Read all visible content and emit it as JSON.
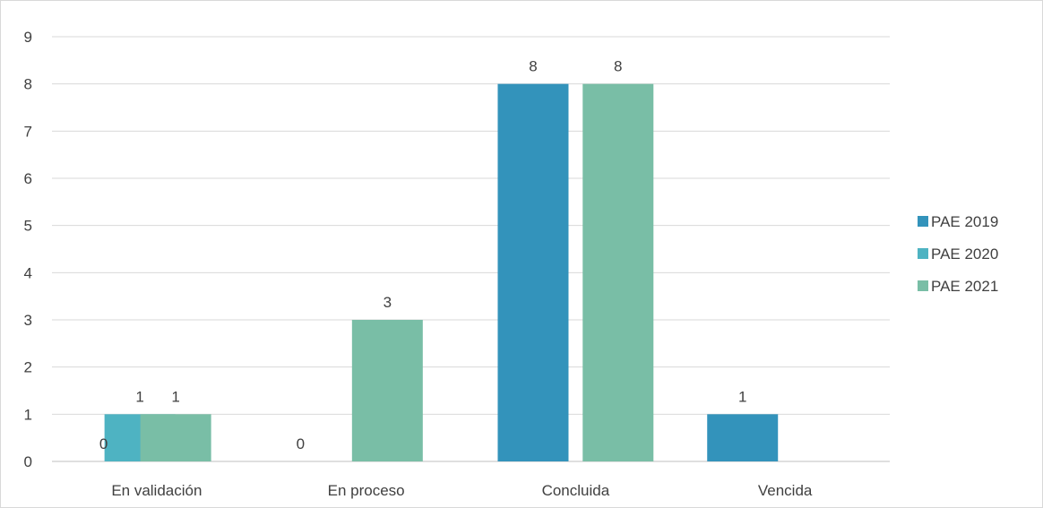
{
  "chart_data": {
    "type": "bar",
    "categories": [
      "En validación",
      "En proceso",
      "Concluida",
      "Vencida"
    ],
    "series": [
      {
        "name": "PAE 2019",
        "color": "#3393bb",
        "values": [
          null,
          null,
          8,
          1
        ],
        "labels": [
          "",
          "",
          "8",
          "1"
        ]
      },
      {
        "name": "PAE 2020",
        "color": "#4eb3c2",
        "values": [
          0,
          0,
          null,
          null
        ],
        "labels": [
          "0",
          "0",
          "",
          ""
        ]
      },
      {
        "name": "PAE 2021",
        "color": "#79bea6",
        "values": [
          1,
          3,
          8,
          null
        ],
        "labels": [
          "1",
          "3",
          "8",
          ""
        ]
      }
    ],
    "extra_bars": [
      {
        "category": "En validación",
        "series": "PAE 2020",
        "value": 1,
        "label": "1"
      }
    ],
    "ylim": [
      0,
      9
    ],
    "yticks": [
      "0",
      "1",
      "2",
      "3",
      "4",
      "5",
      "6",
      "7",
      "8",
      "9"
    ],
    "grid": true,
    "legend_position": "right"
  }
}
